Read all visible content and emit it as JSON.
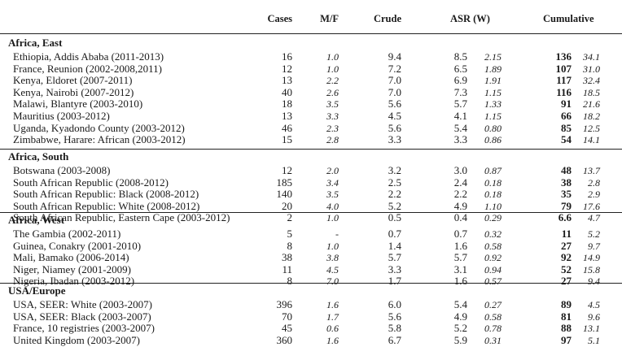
{
  "headers": {
    "cases": "Cases",
    "mf": "M/F",
    "crude": "Crude",
    "asr": "ASR (W)",
    "cumulative": "Cumulative"
  },
  "sections": [
    {
      "title": "Africa, East",
      "rows": [
        {
          "label": "Ethiopia, Addis Ababa (2011-2013)",
          "cases": "16",
          "mf": "1.0",
          "crude": "9.4",
          "asr": "8.5",
          "asr_se": "2.15",
          "cum": "136",
          "cum_se": "34.1"
        },
        {
          "label": "France, Reunion (2002-2008,2011)",
          "cases": "12",
          "mf": "1.0",
          "crude": "7.2",
          "asr": "6.5",
          "asr_se": "1.89",
          "cum": "107",
          "cum_se": "31.0"
        },
        {
          "label": "Kenya, Eldoret (2007-2011)",
          "cases": "13",
          "mf": "2.2",
          "crude": "7.0",
          "asr": "6.9",
          "asr_se": "1.91",
          "cum": "117",
          "cum_se": "32.4"
        },
        {
          "label": "Kenya, Nairobi (2007-2012)",
          "cases": "40",
          "mf": "2.6",
          "crude": "7.0",
          "asr": "7.3",
          "asr_se": "1.15",
          "cum": "116",
          "cum_se": "18.5"
        },
        {
          "label": "Malawi, Blantyre (2003-2010)",
          "cases": "18",
          "mf": "3.5",
          "crude": "5.6",
          "asr": "5.7",
          "asr_se": "1.33",
          "cum": "91",
          "cum_se": "21.6"
        },
        {
          "label": "Mauritius (2003-2012)",
          "cases": "13",
          "mf": "3.3",
          "crude": "4.5",
          "asr": "4.1",
          "asr_se": "1.15",
          "cum": "66",
          "cum_se": "18.2"
        },
        {
          "label": "Uganda, Kyadondo County (2003-2012)",
          "cases": "46",
          "mf": "2.3",
          "crude": "5.6",
          "asr": "5.4",
          "asr_se": "0.80",
          "cum": "85",
          "cum_se": "12.5"
        },
        {
          "label": "Zimbabwe, Harare: African (2003-2012)",
          "cases": "15",
          "mf": "2.8",
          "crude": "3.3",
          "asr": "3.3",
          "asr_se": "0.86",
          "cum": "54",
          "cum_se": "14.1"
        }
      ]
    },
    {
      "title": "Africa, South",
      "rows": [
        {
          "label": "Botswana (2003-2008)",
          "cases": "12",
          "mf": "2.0",
          "crude": "3.2",
          "asr": "3.0",
          "asr_se": "0.87",
          "cum": "48",
          "cum_se": "13.7"
        },
        {
          "label": "South African Republic (2008-2012)",
          "cases": "185",
          "mf": "3.4",
          "crude": "2.5",
          "asr": "2.4",
          "asr_se": "0.18",
          "cum": "38",
          "cum_se": "2.8"
        },
        {
          "label": "South African Republic: Black (2008-2012)",
          "cases": "140",
          "mf": "3.5",
          "crude": "2.2",
          "asr": "2.2",
          "asr_se": "0.18",
          "cum": "35",
          "cum_se": "2.9"
        },
        {
          "label": "South African Republic: White (2008-2012)",
          "cases": "20",
          "mf": "4.0",
          "crude": "5.2",
          "asr": "4.9",
          "asr_se": "1.10",
          "cum": "79",
          "cum_se": "17.6"
        },
        {
          "label": "South African Republic, Eastern Cape (2003-2012)",
          "cases": "2",
          "mf": "1.0",
          "crude": "0.5",
          "asr": "0.4",
          "asr_se": "0.29",
          "cum": "6.6",
          "cum_se": "4.7"
        }
      ]
    },
    {
      "title": "Africa, West",
      "rows": [
        {
          "label": "The Gambia (2002-2011)",
          "cases": "5",
          "mf": "-",
          "crude": "0.7",
          "asr": "0.7",
          "asr_se": "0.32",
          "cum": "11",
          "cum_se": "5.2"
        },
        {
          "label": "Guinea, Conakry (2001-2010)",
          "cases": "8",
          "mf": "1.0",
          "crude": "1.4",
          "asr": "1.6",
          "asr_se": "0.58",
          "cum": "27",
          "cum_se": "9.7"
        },
        {
          "label": "Mali, Bamako (2006-2014)",
          "cases": "38",
          "mf": "3.8",
          "crude": "5.7",
          "asr": "5.7",
          "asr_se": "0.92",
          "cum": "92",
          "cum_se": "14.9"
        },
        {
          "label": "Niger, Niamey (2001-2009)",
          "cases": "11",
          "mf": "4.5",
          "crude": "3.3",
          "asr": "3.1",
          "asr_se": "0.94",
          "cum": "52",
          "cum_se": "15.8"
        },
        {
          "label": "Nigeria, Ibadan (2003-2012)",
          "cases": "8",
          "mf": "7.0",
          "crude": "1.7",
          "asr": "1.6",
          "asr_se": "0.57",
          "cum": "27",
          "cum_se": "9.4"
        }
      ]
    },
    {
      "title": "USA/Europe",
      "rows": [
        {
          "label": "USA, SEER: White (2003-2007)",
          "cases": "396",
          "mf": "1.6",
          "crude": "6.0",
          "asr": "5.4",
          "asr_se": "0.27",
          "cum": "89",
          "cum_se": "4.5"
        },
        {
          "label": "USA, SEER: Black (2003-2007)",
          "cases": "70",
          "mf": "1.7",
          "crude": "5.6",
          "asr": "4.9",
          "asr_se": "0.58",
          "cum": "81",
          "cum_se": "9.6"
        },
        {
          "label": "France, 10 registries (2003-2007)",
          "cases": "45",
          "mf": "0.6",
          "crude": "5.8",
          "asr": "5.2",
          "asr_se": "0.78",
          "cum": "88",
          "cum_se": "13.1"
        },
        {
          "label": "United Kingdom (2003-2007)",
          "cases": "360",
          "mf": "1.6",
          "crude": "6.7",
          "asr": "5.9",
          "asr_se": "0.31",
          "cum": "97",
          "cum_se": "5.1"
        }
      ]
    }
  ]
}
